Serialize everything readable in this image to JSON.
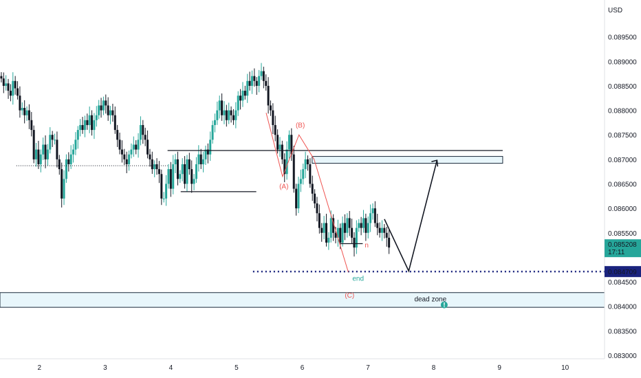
{
  "chart_data": {
    "type": "candlestick",
    "currency": "USD",
    "colors": {
      "up": "#26a69a",
      "down": "#131722",
      "wave": "#ef5350",
      "zone_fill": "#e8f6fb",
      "zone_stroke": "#1b2a3a",
      "dotted_line": "#1a237e",
      "price_label_bg": "#26a69a",
      "target_label_bg": "#1a237e",
      "end_label": "#26a69a"
    },
    "y_axis": {
      "ticks": [
        "0.089500",
        "0.089000",
        "0.088500",
        "0.088000",
        "0.087500",
        "0.087000",
        "0.086500",
        "0.086000",
        "0.085500",
        "0.084500",
        "0.084000",
        "0.083500",
        "0.083000"
      ],
      "range": [
        0.083,
        0.09
      ]
    },
    "x_axis": {
      "ticks": [
        "2",
        "3",
        "4",
        "5",
        "6",
        "7",
        "8",
        "9",
        "10"
      ],
      "range": [
        1.4,
        10.6
      ]
    },
    "current_price": {
      "value": "0.085208",
      "countdown": "17:11",
      "price": 0.0852
    },
    "target_price": {
      "value": "0.084709",
      "price": 0.084709
    },
    "candles_close": [
      0.08865,
      0.0885,
      0.08855,
      0.0884,
      0.0883,
      0.0886,
      0.08845,
      0.0883,
      0.088,
      0.08805,
      0.0879,
      0.088,
      0.0878,
      0.0876,
      0.087,
      0.0872,
      0.0869,
      0.0871,
      0.0873,
      0.087,
      0.0872,
      0.0875,
      0.0874,
      0.0874,
      0.087,
      0.0868,
      0.0862,
      0.0866,
      0.087,
      0.0869,
      0.0871,
      0.0872,
      0.0874,
      0.0876,
      0.0877,
      0.0876,
      0.0878,
      0.0877,
      0.0879,
      0.0876,
      0.0878,
      0.0879,
      0.0881,
      0.088,
      0.0882,
      0.0881,
      0.0879,
      0.088,
      0.0879,
      0.0876,
      0.0874,
      0.0872,
      0.0871,
      0.087,
      0.0869,
      0.0871,
      0.0872,
      0.0873,
      0.0872,
      0.0874,
      0.0877,
      0.0875,
      0.0874,
      0.0871,
      0.087,
      0.0868,
      0.0869,
      0.0868,
      0.0867,
      0.0862,
      0.0862,
      0.0865,
      0.0868,
      0.0864,
      0.0869,
      0.087,
      0.0866,
      0.0867,
      0.0869,
      0.0865,
      0.087,
      0.0868,
      0.0865,
      0.0866,
      0.0869,
      0.0871,
      0.0869,
      0.087,
      0.0872,
      0.0871,
      0.0874,
      0.0877,
      0.0878,
      0.088,
      0.0882,
      0.0879,
      0.088,
      0.0878,
      0.088,
      0.0879,
      0.0878,
      0.088,
      0.0883,
      0.0882,
      0.0884,
      0.0883,
      0.0886,
      0.0885,
      0.0887,
      0.0886,
      0.0885,
      0.0887,
      0.0888,
      0.0886,
      0.0885,
      0.0881,
      0.088,
      0.0877,
      0.0875,
      0.0872,
      0.0873,
      0.087,
      0.0867,
      0.0872,
      0.0875,
      0.0871,
      0.0864,
      0.086,
      0.0865,
      0.0866,
      0.0868,
      0.087,
      0.0869,
      0.0865,
      0.0863,
      0.0861,
      0.0859,
      0.0856,
      0.0855,
      0.0857,
      0.0853,
      0.0854,
      0.0858,
      0.0855,
      0.0854,
      0.0856,
      0.0853,
      0.0857,
      0.0855,
      0.0858,
      0.0856,
      0.0854,
      0.0852,
      0.0856,
      0.0857,
      0.0856,
      0.0858,
      0.0855,
      0.0857,
      0.0859,
      0.086,
      0.0857,
      0.0856,
      0.0855,
      0.0856,
      0.0855,
      0.0854,
      0.0852
    ],
    "annotations": {
      "wave_a": "(A)",
      "wave_b": "(B)",
      "wave_c": "(C)",
      "end": "end",
      "n_mark": "n",
      "dead_zone": "dead zone",
      "flag_icon": "info-pin-icon",
      "flag_glyph": "!"
    },
    "levels": {
      "resistance": 0.08718,
      "zone_top": 0.08706,
      "zone_bottom": 0.08692,
      "left_dotted": 0.08687,
      "mid_support": 0.08634,
      "small_support": 0.08528,
      "dead_top": 0.08428,
      "dead_bottom": 0.08398
    }
  }
}
